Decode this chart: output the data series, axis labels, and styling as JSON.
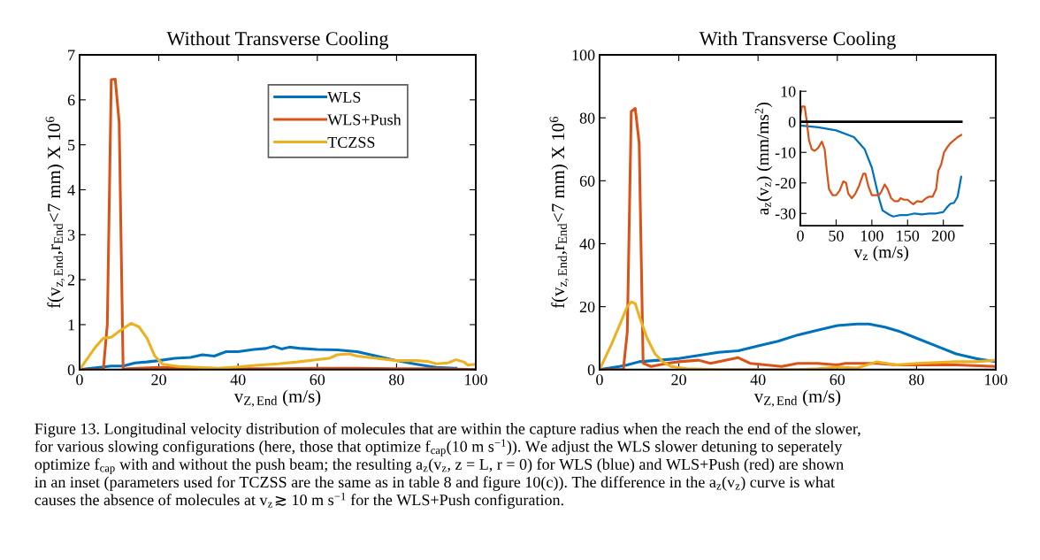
{
  "chart_data": [
    {
      "type": "line",
      "title": "Without Transverse Cooling",
      "xlabel": "v$_{Z,End}$ (m/s)",
      "ylabel": "f(v$_{z,End}$,r$_{End}$<7 mm) X 10$^{6}$",
      "xlim": [
        0,
        100
      ],
      "xticks": [
        0,
        20,
        40,
        60,
        80,
        100
      ],
      "ylim": [
        0,
        7
      ],
      "yticks": [
        0,
        1,
        2,
        3,
        4,
        5,
        6,
        7
      ],
      "legend": "top right",
      "grid": false,
      "series": [
        {
          "name": "WLS",
          "color": "#0072bd",
          "x": [
            0,
            5,
            8,
            11,
            14,
            17,
            20,
            24,
            28,
            31,
            34,
            37,
            40,
            44,
            47,
            49,
            51,
            53,
            56,
            60,
            65,
            70,
            75,
            80,
            85,
            90,
            95
          ],
          "values": [
            0,
            0.05,
            0.08,
            0.08,
            0.15,
            0.17,
            0.2,
            0.25,
            0.27,
            0.33,
            0.3,
            0.4,
            0.4,
            0.45,
            0.47,
            0.52,
            0.46,
            0.5,
            0.47,
            0.45,
            0.44,
            0.4,
            0.3,
            0.2,
            0.12,
            0.05,
            0.03
          ]
        },
        {
          "name": "WLS+Push",
          "color": "#d95319",
          "x": [
            0,
            6,
            7,
            8,
            9,
            10,
            11,
            12,
            20,
            30,
            40,
            50,
            60,
            70,
            80,
            90,
            100
          ],
          "values": [
            0,
            0,
            1,
            6.45,
            6.46,
            5.5,
            0,
            0.02,
            0.05,
            0.03,
            0.02,
            0.02,
            0.03,
            0.03,
            0.02,
            0.02,
            0
          ]
        },
        {
          "name": "TCZSS",
          "color": "#edb120",
          "x": [
            0,
            2,
            4,
            6,
            8,
            10,
            13,
            15,
            17,
            19,
            21,
            25,
            30,
            35,
            40,
            45,
            50,
            55,
            60,
            63,
            65,
            68,
            70,
            75,
            80,
            85,
            88,
            90,
            93,
            95,
            97,
            98,
            100
          ],
          "values": [
            0,
            0.25,
            0.5,
            0.7,
            0.72,
            0.85,
            1.03,
            0.95,
            0.7,
            0.3,
            0.12,
            0.07,
            0.05,
            0.03,
            0.06,
            0.1,
            0.13,
            0.17,
            0.22,
            0.25,
            0.33,
            0.35,
            0.3,
            0.25,
            0.2,
            0.2,
            0.18,
            0.13,
            0.15,
            0.22,
            0.17,
            0.1,
            0.12
          ]
        }
      ],
      "annotations": [
        "Figure 13. Longitudinal velocity distribution of molecules that are within the capture radius when the reach the end of the slower,\nfor various slowing configurations (here, those that optimize f$_{cap}$(10 m s$^{−1}$)). We adjust the WLS slower detuning to seperately\noptimize f$_{cap}$ with and without the push beam; the resulting a$_{z}$(v$_{z}$, z = L, r = 0) for WLS (blue) and WLS+Push (red) are shown\nin an inset (parameters used for TCZSS are the same as in table 8 and figure 10(c)). The difference in the a$_{z}$(v$_{z}$) curve is what\ncauses the absence of molecules at v$_{z}$ ≳ 10 m s$^{−1}$ for the WLS+Push configuration."
      ]
    },
    {
      "type": "line",
      "title": "With Transverse Cooling",
      "xlabel": "v$_{Z,End}$ (m/s)",
      "ylabel": "f(v$_{z,End}$,r$_{End}$<7 mm) X 10$^{6}$",
      "xlim": [
        0,
        100
      ],
      "xticks": [
        0,
        20,
        40,
        60,
        80,
        100
      ],
      "ylim": [
        0,
        100
      ],
      "yticks": [
        0,
        20,
        40,
        60,
        80,
        100
      ],
      "grid": false,
      "series": [
        {
          "color": "#0072bd",
          "x": [
            0,
            5,
            7,
            10,
            15,
            20,
            25,
            30,
            35,
            40,
            45,
            50,
            55,
            60,
            65,
            68,
            72,
            76,
            80,
            85,
            90,
            95,
            100
          ],
          "values": [
            0,
            1,
            1.5,
            2.5,
            3,
            3.5,
            4.5,
            5.5,
            6,
            7.5,
            9,
            11,
            12.5,
            14,
            14.5,
            14.5,
            13.5,
            12,
            10,
            7.5,
            5,
            3.5,
            2.5
          ]
        },
        {
          "color": "#d95319",
          "x": [
            0,
            6,
            7,
            8,
            9,
            10,
            11,
            13,
            17,
            20,
            25,
            28,
            32,
            35,
            38,
            42,
            46,
            50,
            55,
            60,
            62,
            70,
            75,
            80,
            90,
            100
          ],
          "values": [
            0,
            0,
            12,
            82,
            83,
            72,
            2,
            1,
            2,
            2.5,
            3,
            2,
            3,
            3.8,
            2,
            1.5,
            1,
            2,
            2,
            1.5,
            2,
            2,
            1.5,
            1.5,
            1.5,
            1
          ]
        },
        {
          "color": "#edb120",
          "x": [
            0,
            3,
            5,
            7,
            8,
            9,
            10,
            12,
            14,
            16,
            18,
            22,
            30,
            40,
            50,
            55,
            60,
            65,
            70,
            75,
            80,
            90,
            95,
            100
          ],
          "values": [
            0,
            8,
            14,
            20,
            21.5,
            21,
            17,
            10,
            5,
            2.5,
            1,
            0.3,
            0,
            0,
            0,
            0.3,
            0.8,
            0.5,
            2.5,
            1.5,
            2,
            2.5,
            2.5,
            3
          ]
        }
      ]
    },
    {
      "type": "line",
      "xlabel": "v$_{z}$ (m/s)",
      "ylabel": "a$_{z}$(v$_{z}$) (mm/ms$^{2}$)",
      "xlim": [
        0,
        227
      ],
      "xticks": [
        0,
        50,
        100,
        150,
        200
      ],
      "ylim": [
        -34,
        10
      ],
      "yticks": [
        -30,
        -20,
        -10,
        0,
        10
      ],
      "grid": false,
      "ref_lines": [
        {
          "axis": "y",
          "value": 0,
          "color": "#000000"
        }
      ],
      "series": [
        {
          "color": "#0072bd",
          "x": [
            0,
            25,
            50,
            75,
            90,
            100,
            105,
            110,
            115,
            125,
            130,
            140,
            150,
            160,
            170,
            180,
            190,
            200,
            205,
            210,
            215,
            220,
            225
          ],
          "values": [
            -1.2,
            -1.8,
            -2.8,
            -5,
            -9,
            -15,
            -20,
            -25,
            -29,
            -30.5,
            -31,
            -30.5,
            -30.5,
            -30,
            -30.3,
            -30,
            -30,
            -29.5,
            -28,
            -26.8,
            -26.5,
            -24.5,
            -18
          ]
        },
        {
          "color": "#d95319",
          "x": [
            0,
            2,
            6,
            9,
            12,
            16,
            20,
            25,
            30,
            34,
            37,
            40,
            45,
            50,
            55,
            60,
            64,
            67,
            72,
            77,
            82,
            88,
            91,
            95,
            100,
            110,
            113,
            118,
            122,
            127,
            132,
            137,
            140,
            145,
            150,
            155,
            158,
            163,
            170,
            176,
            180,
            185,
            190,
            193,
            197,
            201,
            205,
            210,
            215,
            220,
            225
          ],
          "values": [
            2,
            5,
            5,
            0,
            -6,
            -9,
            -9.5,
            -8.5,
            -6.5,
            -9,
            -16,
            -22,
            -24,
            -24,
            -22.5,
            -19.5,
            -20,
            -23.5,
            -25,
            -23.5,
            -21,
            -17,
            -17,
            -21,
            -24,
            -24,
            -23,
            -20.5,
            -22,
            -25,
            -26,
            -26,
            -25,
            -25.5,
            -25.5,
            -26.5,
            -27,
            -26,
            -26.2,
            -25,
            -24.5,
            -24.5,
            -22,
            -16,
            -14,
            -10,
            -8.5,
            -7,
            -6,
            -5,
            -4.3
          ]
        }
      ]
    }
  ]
}
